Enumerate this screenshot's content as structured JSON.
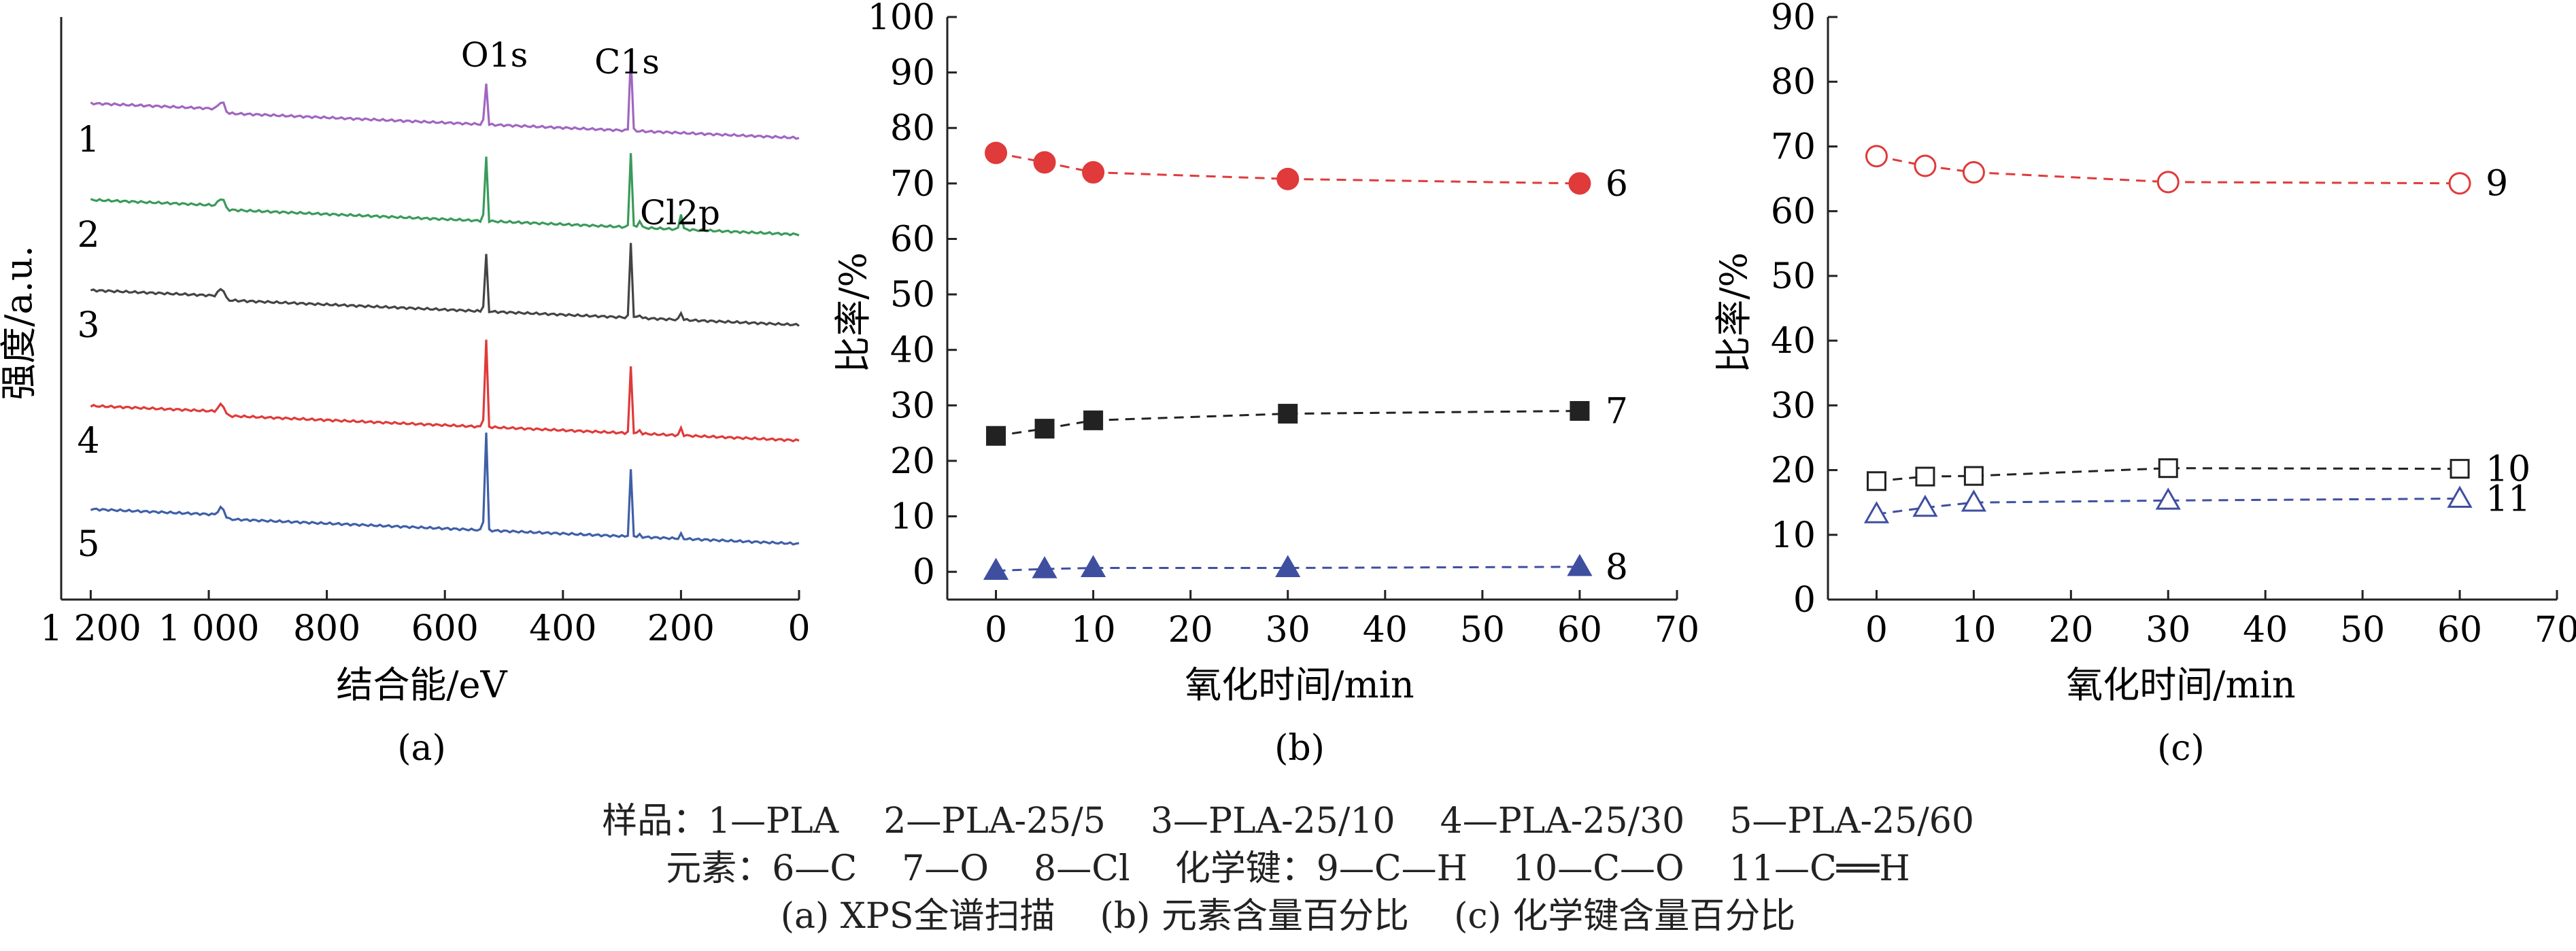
{
  "panels": {
    "a": {
      "label": "(a)",
      "xlabel": "结合能/eV",
      "ylabel": "强度/a.u.",
      "peak_labels": [
        "O1s",
        "C1s",
        "Cl2p"
      ]
    },
    "b": {
      "label": "(b)",
      "xlabel": "氧化时间/min",
      "ylabel": "比率/%"
    },
    "c": {
      "label": "(c)",
      "xlabel": "氧化时间/min",
      "ylabel": "比率/%"
    }
  },
  "legend": {
    "line1": "样品：1—PLA    2—PLA-25/5    3—PLA-25/10    4—PLA-25/30    5—PLA-25/60",
    "line2": "元素：6—C    7—O    8—Cl    化学键：9—C—H    10—C—O    11—C══H",
    "line3": "(a) XPS全谱扫描    (b) 元素含量百分比    (c) 化学键含量百分比"
  },
  "chart_data": [
    {
      "type": "line",
      "panel": "a",
      "title": "",
      "xlabel": "结合能/eV",
      "ylabel": "强度/a.u.",
      "x_reversed": true,
      "xlim": [
        1250,
        0
      ],
      "x_ticks": [
        1200,
        1000,
        800,
        600,
        400,
        200,
        0
      ],
      "x_tick_labels": [
        "1 200",
        "1 000",
        "800",
        "600",
        "400",
        "200",
        "0"
      ],
      "annotations": [
        {
          "text": "O1s",
          "x": 531
        },
        {
          "text": "C1s",
          "x": 285
        },
        {
          "text": "Cl2p",
          "x": 200
        }
      ],
      "series": [
        {
          "name": "1",
          "color": "#a066c0",
          "peaks": {
            "O1s": 0.55,
            "C1s": 0.85,
            "Cl2p": 0.0
          }
        },
        {
          "name": "2",
          "color": "#3a9a5a",
          "peaks": {
            "O1s": 0.85,
            "C1s": 0.85,
            "Cl2p": 0.18
          }
        },
        {
          "name": "3",
          "color": "#444444",
          "peaks": {
            "O1s": 0.75,
            "C1s": 0.85,
            "Cl2p": 0.08
          }
        },
        {
          "name": "4",
          "color": "#e03a3a",
          "peaks": {
            "O1s": 1.15,
            "C1s": 0.75,
            "Cl2p": 0.08
          }
        },
        {
          "name": "5",
          "color": "#3f5fa8",
          "peaks": {
            "O1s": 1.3,
            "C1s": 0.75,
            "Cl2p": 0.05
          }
        }
      ]
    },
    {
      "type": "line",
      "panel": "b",
      "xlabel": "氧化时间/min",
      "ylabel": "比率/%",
      "x": [
        0,
        5,
        10,
        30,
        60
      ],
      "xlim": [
        -5,
        70
      ],
      "ylim": [
        -5,
        100
      ],
      "x_ticks": [
        0,
        10,
        20,
        30,
        40,
        50,
        60,
        70
      ],
      "y_ticks": [
        0,
        10,
        20,
        30,
        40,
        50,
        60,
        70,
        80,
        90,
        100
      ],
      "series": [
        {
          "name": "6",
          "marker": "circle-filled",
          "color": "#e03a3a",
          "values": [
            75.5,
            73.8,
            72.0,
            70.8,
            70.0
          ]
        },
        {
          "name": "7",
          "marker": "square-filled",
          "color": "#222222",
          "values": [
            24.5,
            25.8,
            27.3,
            28.5,
            29.0
          ]
        },
        {
          "name": "8",
          "marker": "triangle-filled",
          "color": "#3f4fa0",
          "values": [
            0.2,
            0.5,
            0.7,
            0.7,
            0.9
          ]
        }
      ]
    },
    {
      "type": "line",
      "panel": "c",
      "xlabel": "氧化时间/min",
      "ylabel": "比率/%",
      "x": [
        0,
        5,
        10,
        30,
        60
      ],
      "xlim": [
        -5,
        70
      ],
      "ylim": [
        0,
        90
      ],
      "x_ticks": [
        0,
        10,
        20,
        30,
        40,
        50,
        60,
        70
      ],
      "y_ticks": [
        0,
        10,
        20,
        30,
        40,
        50,
        60,
        70,
        80,
        90
      ],
      "series": [
        {
          "name": "9",
          "marker": "circle-open",
          "color": "#e03a3a",
          "values": [
            68.5,
            67.0,
            66.0,
            64.5,
            64.3
          ]
        },
        {
          "name": "10",
          "marker": "square-open",
          "color": "#222222",
          "values": [
            18.3,
            19.0,
            19.1,
            20.3,
            20.2
          ]
        },
        {
          "name": "11",
          "marker": "triangle-open",
          "color": "#3f4fa0",
          "values": [
            13.2,
            14.2,
            15.0,
            15.3,
            15.6
          ]
        }
      ]
    }
  ]
}
